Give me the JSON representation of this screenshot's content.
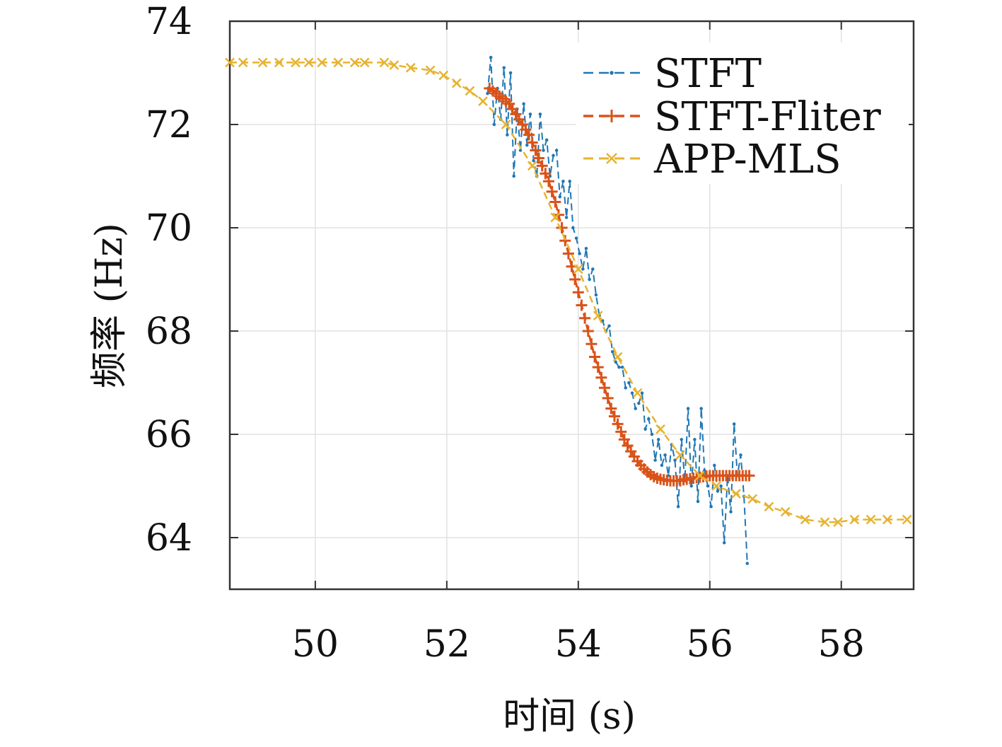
{
  "chart_data": {
    "type": "line",
    "xlabel": "时间 (s)",
    "ylabel": "频率 (Hz)",
    "xlim": [
      48.7,
      59.1
    ],
    "ylim": [
      63.0,
      74.0
    ],
    "x_ticks": [
      50,
      52,
      54,
      56,
      58
    ],
    "y_ticks": [
      64,
      66,
      68,
      70,
      72,
      74
    ],
    "grid": true,
    "legend_position": "top-right",
    "series": [
      {
        "name": "STFT",
        "color": "#1f77b4",
        "marker": "dot",
        "style": "dashed",
        "x": [
          52.62,
          52.67,
          52.72,
          52.77,
          52.82,
          52.87,
          52.92,
          52.97,
          53.02,
          53.07,
          53.12,
          53.17,
          53.22,
          53.27,
          53.32,
          53.37,
          53.42,
          53.47,
          53.52,
          53.57,
          53.62,
          53.67,
          53.72,
          53.77,
          53.82,
          53.87,
          53.92,
          53.97,
          54.02,
          54.07,
          54.12,
          54.17,
          54.22,
          54.27,
          54.32,
          54.37,
          54.42,
          54.47,
          54.52,
          54.57,
          54.62,
          54.67,
          54.72,
          54.77,
          54.82,
          54.87,
          54.92,
          54.97,
          55.02,
          55.07,
          55.12,
          55.17,
          55.22,
          55.27,
          55.32,
          55.37,
          55.42,
          55.47,
          55.52,
          55.57,
          55.62,
          55.67,
          55.72,
          55.77,
          55.82,
          55.87,
          55.92,
          55.97,
          56.02,
          56.07,
          56.12,
          56.17,
          56.22,
          56.27,
          56.32,
          56.37,
          56.42,
          56.47,
          56.52,
          56.57
        ],
        "y": [
          72.6,
          73.3,
          72.0,
          72.7,
          72.1,
          73.1,
          71.8,
          73.0,
          71.0,
          72.3,
          71.5,
          72.4,
          71.6,
          72.2,
          71.3,
          71.0,
          72.2,
          71.5,
          71.7,
          71.0,
          71.4,
          71.5,
          70.6,
          70.9,
          70.2,
          70.9,
          70.0,
          69.8,
          69.5,
          69.2,
          69.6,
          69.0,
          69.2,
          68.7,
          68.3,
          68.2,
          68.0,
          68.1,
          67.6,
          67.4,
          67.3,
          67.3,
          66.9,
          67.0,
          66.8,
          66.5,
          66.6,
          66.8,
          66.1,
          66.3,
          66.0,
          65.5,
          65.9,
          65.4,
          65.6,
          65.2,
          65.8,
          65.5,
          64.6,
          65.9,
          65.1,
          66.5,
          65.0,
          65.9,
          64.7,
          66.5,
          65.3,
          65.0,
          64.6,
          65.4,
          64.9,
          65.0,
          63.9,
          65.2,
          64.5,
          66.2,
          65.2,
          65.6,
          64.8,
          63.5
        ]
      },
      {
        "name": "STFT-Fliter",
        "color": "#d95319",
        "marker": "plus",
        "style": "dashed",
        "x": [
          52.65,
          52.7,
          52.75,
          52.8,
          52.85,
          52.9,
          52.95,
          53.0,
          53.05,
          53.1,
          53.15,
          53.2,
          53.25,
          53.3,
          53.35,
          53.4,
          53.45,
          53.5,
          53.55,
          53.6,
          53.65,
          53.7,
          53.75,
          53.8,
          53.85,
          53.9,
          53.95,
          54.0,
          54.05,
          54.1,
          54.15,
          54.2,
          54.25,
          54.3,
          54.35,
          54.4,
          54.45,
          54.5,
          54.55,
          54.6,
          54.65,
          54.7,
          54.75,
          54.8,
          54.85,
          54.9,
          54.95,
          55.0,
          55.05,
          55.1,
          55.15,
          55.2,
          55.25,
          55.3,
          55.35,
          55.4,
          55.45,
          55.5,
          55.55,
          55.6,
          55.65,
          55.7,
          55.75,
          55.8,
          55.85,
          55.9,
          55.95,
          56.0,
          56.05,
          56.1,
          56.15,
          56.2,
          56.25,
          56.3,
          56.35,
          56.4,
          56.45,
          56.5,
          56.55,
          56.6
        ],
        "y": [
          72.7,
          72.65,
          72.6,
          72.55,
          72.5,
          72.45,
          72.4,
          72.3,
          72.2,
          72.1,
          72.0,
          71.9,
          71.8,
          71.65,
          71.5,
          71.35,
          71.2,
          71.05,
          70.9,
          70.7,
          70.5,
          70.25,
          70.0,
          69.75,
          69.5,
          69.25,
          69.0,
          68.75,
          68.5,
          68.25,
          68.0,
          67.75,
          67.5,
          67.3,
          67.1,
          66.9,
          66.7,
          66.5,
          66.35,
          66.2,
          66.05,
          65.9,
          65.78,
          65.67,
          65.57,
          65.48,
          65.4,
          65.33,
          65.27,
          65.22,
          65.18,
          65.15,
          65.13,
          65.12,
          65.11,
          65.1,
          65.1,
          65.1,
          65.1,
          65.12,
          65.13,
          65.14,
          65.15,
          65.16,
          65.17,
          65.18,
          65.19,
          65.2,
          65.2,
          65.2,
          65.2,
          65.2,
          65.2,
          65.2,
          65.2,
          65.2,
          65.2,
          65.2,
          65.2,
          65.2
        ]
      },
      {
        "name": "APP-MLS",
        "color": "#e6b330",
        "marker": "x",
        "style": "dashed",
        "x": [
          48.7,
          48.9,
          49.2,
          49.45,
          49.7,
          49.9,
          50.1,
          50.35,
          50.6,
          50.75,
          51.05,
          51.2,
          51.45,
          51.75,
          51.95,
          52.15,
          52.35,
          52.55,
          52.9,
          53.3,
          53.65,
          54.0,
          54.3,
          54.6,
          54.9,
          55.25,
          55.55,
          55.85,
          56.1,
          56.4,
          56.65,
          56.9,
          57.15,
          57.45,
          57.75,
          57.95,
          58.2,
          58.45,
          58.7,
          59.0
        ],
        "y": [
          73.2,
          73.2,
          73.2,
          73.2,
          73.2,
          73.2,
          73.2,
          73.2,
          73.2,
          73.2,
          73.2,
          73.15,
          73.1,
          73.05,
          72.95,
          72.8,
          72.65,
          72.45,
          72.0,
          71.2,
          70.2,
          69.2,
          68.3,
          67.5,
          66.8,
          66.1,
          65.6,
          65.2,
          65.0,
          64.85,
          64.75,
          64.6,
          64.5,
          64.35,
          64.3,
          64.3,
          64.35,
          64.35,
          64.35,
          64.35
        ]
      }
    ]
  }
}
